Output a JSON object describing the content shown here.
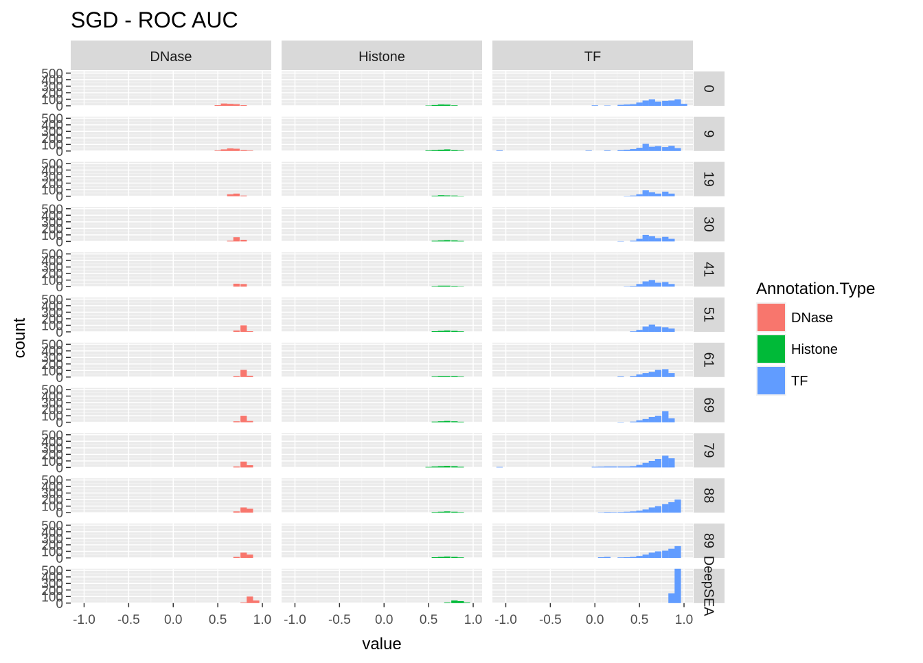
{
  "chart_data": {
    "type": "bar",
    "title": "SGD - ROC AUC",
    "xlabel": "value",
    "ylabel": "count",
    "xlim": [
      -1.15,
      1.1
    ],
    "ylim": [
      0,
      525
    ],
    "x_ticks": [
      -1.0,
      -0.5,
      0.0,
      0.5,
      1.0
    ],
    "x_tick_labels": [
      "-1.0",
      "-0.5",
      "0.0",
      "0.5",
      "1.0"
    ],
    "y_ticks": [
      0,
      100,
      200,
      300,
      400,
      500
    ],
    "y_tick_labels": [
      "0",
      "100",
      "200",
      "300",
      "400",
      "500"
    ],
    "bin_width": 0.0714,
    "grid": true,
    "background": "#EBEBEB",
    "facet_columns": [
      "DNase",
      "Histone",
      "TF"
    ],
    "facet_rows": [
      "0",
      "9",
      "19",
      "30",
      "41",
      "51",
      "61",
      "69",
      "79",
      "88",
      "89",
      "DeepSEA"
    ],
    "legend": {
      "title": "Annotation.Type",
      "position": "right",
      "items": [
        {
          "label": "DNase",
          "color": "#F8766D"
        },
        {
          "label": "Histone",
          "color": "#00BA38"
        },
        {
          "label": "TF",
          "color": "#619CFF"
        }
      ]
    },
    "panels": {
      "0": {
        "DNase": [
          [
            0.5,
            10
          ],
          [
            0.57,
            35
          ],
          [
            0.64,
            30
          ],
          [
            0.71,
            25
          ],
          [
            0.79,
            10
          ]
        ],
        "Histone": [
          [
            0.5,
            5
          ],
          [
            0.57,
            12
          ],
          [
            0.64,
            20
          ],
          [
            0.71,
            18
          ],
          [
            0.79,
            8
          ]
        ],
        "TF": [
          [
            0.0,
            8
          ],
          [
            0.14,
            5
          ],
          [
            0.29,
            15
          ],
          [
            0.36,
            20
          ],
          [
            0.43,
            25
          ],
          [
            0.5,
            50
          ],
          [
            0.57,
            80
          ],
          [
            0.64,
            100
          ],
          [
            0.71,
            65
          ],
          [
            0.79,
            75
          ],
          [
            0.86,
            80
          ],
          [
            0.93,
            100
          ],
          [
            1.0,
            30
          ]
        ]
      },
      "9": {
        "DNase": [
          [
            0.5,
            10
          ],
          [
            0.57,
            25
          ],
          [
            0.64,
            40
          ],
          [
            0.71,
            35
          ],
          [
            0.79,
            15
          ],
          [
            0.86,
            8
          ]
        ],
        "Histone": [
          [
            0.5,
            10
          ],
          [
            0.57,
            15
          ],
          [
            0.64,
            20
          ],
          [
            0.71,
            25
          ],
          [
            0.79,
            15
          ],
          [
            0.86,
            8
          ]
        ],
        "TF": [
          [
            -1.07,
            10
          ],
          [
            -0.07,
            8
          ],
          [
            0.14,
            10
          ],
          [
            0.29,
            15
          ],
          [
            0.36,
            20
          ],
          [
            0.43,
            30
          ],
          [
            0.5,
            50
          ],
          [
            0.57,
            110
          ],
          [
            0.64,
            65
          ],
          [
            0.71,
            75
          ],
          [
            0.79,
            60
          ],
          [
            0.86,
            80
          ],
          [
            0.93,
            45
          ]
        ]
      },
      "19": {
        "DNase": [
          [
            0.64,
            30
          ],
          [
            0.71,
            40
          ],
          [
            0.79,
            10
          ]
        ],
        "Histone": [
          [
            0.57,
            8
          ],
          [
            0.64,
            15
          ],
          [
            0.71,
            12
          ],
          [
            0.79,
            10
          ],
          [
            0.86,
            5
          ]
        ],
        "TF": [
          [
            0.36,
            5
          ],
          [
            0.43,
            10
          ],
          [
            0.5,
            30
          ],
          [
            0.57,
            90
          ],
          [
            0.64,
            60
          ],
          [
            0.71,
            40
          ],
          [
            0.79,
            70
          ],
          [
            0.86,
            40
          ]
        ]
      },
      "30": {
        "DNase": [
          [
            0.64,
            10
          ],
          [
            0.71,
            65
          ],
          [
            0.79,
            25
          ]
        ],
        "Histone": [
          [
            0.57,
            10
          ],
          [
            0.64,
            15
          ],
          [
            0.71,
            20
          ],
          [
            0.79,
            15
          ],
          [
            0.86,
            8
          ]
        ],
        "TF": [
          [
            0.29,
            5
          ],
          [
            0.43,
            10
          ],
          [
            0.5,
            40
          ],
          [
            0.57,
            100
          ],
          [
            0.64,
            80
          ],
          [
            0.71,
            50
          ],
          [
            0.79,
            70
          ],
          [
            0.86,
            40
          ]
        ]
      },
      "41": {
        "DNase": [
          [
            0.71,
            45
          ],
          [
            0.79,
            40
          ]
        ],
        "Histone": [
          [
            0.57,
            8
          ],
          [
            0.64,
            15
          ],
          [
            0.71,
            15
          ],
          [
            0.79,
            10
          ],
          [
            0.86,
            5
          ]
        ],
        "TF": [
          [
            0.36,
            5
          ],
          [
            0.43,
            10
          ],
          [
            0.5,
            40
          ],
          [
            0.57,
            80
          ],
          [
            0.64,
            100
          ],
          [
            0.71,
            60
          ],
          [
            0.79,
            70
          ],
          [
            0.86,
            40
          ]
        ]
      },
      "51": {
        "DNase": [
          [
            0.71,
            20
          ],
          [
            0.79,
            100
          ],
          [
            0.86,
            10
          ]
        ],
        "Histone": [
          [
            0.57,
            10
          ],
          [
            0.64,
            15
          ],
          [
            0.71,
            20
          ],
          [
            0.79,
            15
          ],
          [
            0.86,
            8
          ]
        ],
        "TF": [
          [
            0.43,
            8
          ],
          [
            0.5,
            30
          ],
          [
            0.57,
            80
          ],
          [
            0.64,
            110
          ],
          [
            0.71,
            80
          ],
          [
            0.79,
            70
          ],
          [
            0.86,
            50
          ]
        ]
      },
      "61": {
        "DNase": [
          [
            0.71,
            15
          ],
          [
            0.79,
            110
          ],
          [
            0.86,
            20
          ]
        ],
        "Histone": [
          [
            0.57,
            10
          ],
          [
            0.64,
            15
          ],
          [
            0.71,
            15
          ],
          [
            0.79,
            15
          ],
          [
            0.86,
            8
          ]
        ],
        "TF": [
          [
            0.29,
            10
          ],
          [
            0.43,
            15
          ],
          [
            0.5,
            40
          ],
          [
            0.57,
            60
          ],
          [
            0.64,
            80
          ],
          [
            0.71,
            110
          ],
          [
            0.79,
            120
          ],
          [
            0.86,
            60
          ]
        ]
      },
      "69": {
        "DNase": [
          [
            0.71,
            15
          ],
          [
            0.79,
            100
          ],
          [
            0.86,
            20
          ]
        ],
        "Histone": [
          [
            0.57,
            10
          ],
          [
            0.64,
            15
          ],
          [
            0.71,
            20
          ],
          [
            0.79,
            15
          ],
          [
            0.86,
            8
          ]
        ],
        "TF": [
          [
            0.29,
            5
          ],
          [
            0.43,
            10
          ],
          [
            0.5,
            30
          ],
          [
            0.57,
            50
          ],
          [
            0.64,
            80
          ],
          [
            0.71,
            100
          ],
          [
            0.79,
            170
          ],
          [
            0.86,
            60
          ]
        ]
      },
      "79": {
        "DNase": [
          [
            0.71,
            15
          ],
          [
            0.79,
            90
          ],
          [
            0.86,
            35
          ]
        ],
        "Histone": [
          [
            0.5,
            8
          ],
          [
            0.57,
            15
          ],
          [
            0.64,
            20
          ],
          [
            0.71,
            25
          ],
          [
            0.79,
            20
          ],
          [
            0.86,
            10
          ]
        ],
        "TF": [
          [
            -1.07,
            8
          ],
          [
            0.0,
            10
          ],
          [
            0.07,
            12
          ],
          [
            0.14,
            15
          ],
          [
            0.21,
            15
          ],
          [
            0.29,
            15
          ],
          [
            0.36,
            15
          ],
          [
            0.43,
            20
          ],
          [
            0.5,
            40
          ],
          [
            0.57,
            70
          ],
          [
            0.64,
            100
          ],
          [
            0.71,
            130
          ],
          [
            0.79,
            180
          ],
          [
            0.86,
            140
          ]
        ]
      },
      "88": {
        "DNase": [
          [
            0.71,
            20
          ],
          [
            0.79,
            80
          ],
          [
            0.86,
            60
          ]
        ],
        "Histone": [
          [
            0.57,
            10
          ],
          [
            0.64,
            15
          ],
          [
            0.71,
            20
          ],
          [
            0.79,
            15
          ],
          [
            0.86,
            8
          ]
        ],
        "TF": [
          [
            0.07,
            5
          ],
          [
            0.14,
            10
          ],
          [
            0.21,
            8
          ],
          [
            0.29,
            10
          ],
          [
            0.36,
            15
          ],
          [
            0.43,
            20
          ],
          [
            0.5,
            30
          ],
          [
            0.57,
            50
          ],
          [
            0.64,
            80
          ],
          [
            0.71,
            100
          ],
          [
            0.79,
            130
          ],
          [
            0.86,
            160
          ],
          [
            0.93,
            200
          ]
        ]
      },
      "89": {
        "DNase": [
          [
            0.71,
            15
          ],
          [
            0.79,
            80
          ],
          [
            0.86,
            50
          ]
        ],
        "Histone": [
          [
            0.57,
            10
          ],
          [
            0.64,
            15
          ],
          [
            0.71,
            20
          ],
          [
            0.79,
            15
          ],
          [
            0.86,
            8
          ]
        ],
        "TF": [
          [
            0.07,
            10
          ],
          [
            0.14,
            15
          ],
          [
            0.29,
            8
          ],
          [
            0.36,
            10
          ],
          [
            0.43,
            15
          ],
          [
            0.5,
            30
          ],
          [
            0.57,
            50
          ],
          [
            0.64,
            80
          ],
          [
            0.71,
            100
          ],
          [
            0.79,
            110
          ],
          [
            0.86,
            140
          ],
          [
            0.93,
            180
          ]
        ]
      },
      "DeepSEA": {
        "DNase": [
          [
            0.79,
            10
          ],
          [
            0.86,
            100
          ],
          [
            0.93,
            40
          ]
        ],
        "Histone": [
          [
            0.71,
            10
          ],
          [
            0.79,
            40
          ],
          [
            0.86,
            30
          ],
          [
            0.93,
            10
          ]
        ],
        "TF": [
          [
            0.86,
            150
          ],
          [
            0.93,
            525
          ]
        ]
      }
    }
  }
}
